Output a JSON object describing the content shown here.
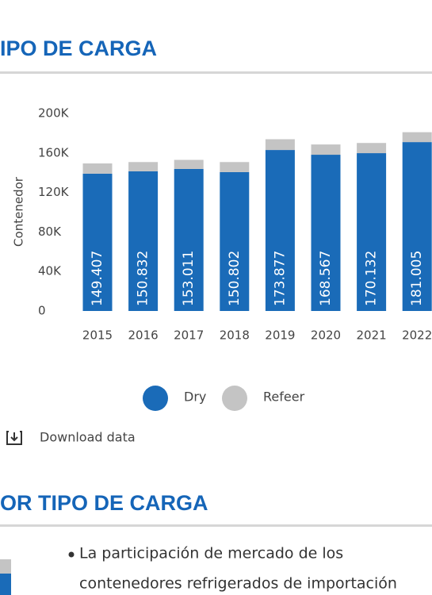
{
  "header": {
    "title": "IPO DE CARGA"
  },
  "chart_data": {
    "type": "stacked_bar",
    "y_label": "Contenedor",
    "categories": [
      "2015",
      "2016",
      "2017",
      "2018",
      "2019",
      "2020",
      "2021",
      "2022"
    ],
    "series": [
      {
        "name": "Dry",
        "color": "#1a6bb8",
        "values": [
          139000,
          141400,
          143800,
          140600,
          163000,
          158200,
          159800,
          171000
        ]
      },
      {
        "name": "Refeer",
        "color": "#c4c4c4",
        "values": [
          10400,
          9400,
          9200,
          10200,
          10900,
          10400,
          10300,
          10000
        ]
      }
    ],
    "totals": {
      "values": [
        149407,
        150832,
        153011,
        150802,
        173877,
        168567,
        170132,
        181005
      ],
      "value_labels": [
        "149.407",
        "150.832",
        "153.011",
        "150.802",
        "173.877",
        "168.567",
        "170.132",
        "181.005"
      ]
    },
    "ylim": [
      0,
      200000
    ],
    "yticks": [
      0,
      {
        "value": 40000,
        "label": "40K"
      },
      {
        "value": 80000,
        "label": "80K"
      },
      {
        "value": 120000,
        "label": "120K"
      },
      {
        "value": 160000,
        "label": "160K"
      },
      {
        "value": 200000,
        "label": "200K"
      }
    ]
  },
  "download": "Download data",
  "section": {
    "title": "OR TIPO DE CARGA",
    "bullet": [
      "La participación de mercado de los",
      "contenedores refrigerados de importación"
    ]
  }
}
